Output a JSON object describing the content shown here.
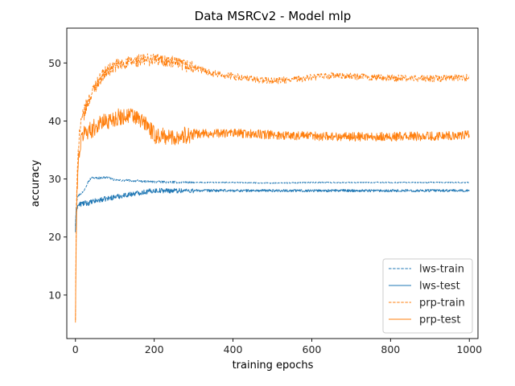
{
  "chart_data": {
    "type": "line",
    "title": "Data MSRCv2 - Model mlp",
    "xlabel": "training epochs",
    "ylabel": "accuracy",
    "xlim": [
      -22,
      1022
    ],
    "ylim": [
      2.5,
      56
    ],
    "xticks": [
      0,
      200,
      400,
      600,
      800,
      1000
    ],
    "yticks": [
      10,
      20,
      30,
      40,
      50
    ],
    "grid": false,
    "legend_position": "bottom-right",
    "series": [
      {
        "name": "lws-train",
        "color": "#1f77b4",
        "style": "dashed",
        "x": [
          0,
          2,
          5,
          10,
          20,
          30,
          40,
          60,
          80,
          100,
          150,
          200,
          300,
          400,
          500,
          600,
          700,
          800,
          900,
          1000
        ],
        "y": [
          22,
          25.5,
          27,
          27.3,
          27.8,
          29.3,
          30.2,
          30.2,
          30.3,
          29.8,
          29.7,
          29.5,
          29.4,
          29.4,
          29.3,
          29.4,
          29.4,
          29.4,
          29.4,
          29.4
        ],
        "noise": 0.15
      },
      {
        "name": "lws-test",
        "color": "#1f77b4",
        "style": "solid",
        "x": [
          0,
          2,
          5,
          10,
          20,
          30,
          50,
          100,
          150,
          200,
          300,
          400,
          500,
          600,
          700,
          800,
          900,
          1000
        ],
        "y": [
          21,
          24.5,
          25.3,
          25.6,
          25.8,
          25.8,
          26.2,
          26.9,
          27.5,
          28.0,
          28.0,
          28.0,
          28.0,
          28.0,
          28.0,
          28.0,
          28.0,
          28.0
        ],
        "noise": 0.35
      },
      {
        "name": "prp-train",
        "color": "#ff7f0e",
        "style": "dashed",
        "x": [
          0,
          2,
          5,
          10,
          20,
          30,
          50,
          70,
          100,
          150,
          200,
          250,
          300,
          350,
          400,
          450,
          500,
          550,
          600,
          650,
          700,
          800,
          900,
          1000
        ],
        "y": [
          6,
          22,
          33,
          38,
          41,
          43,
          46,
          48,
          49.5,
          50.3,
          50.7,
          50.0,
          49.2,
          48.2,
          47.7,
          47.2,
          46.9,
          47.1,
          47.5,
          47.8,
          47.7,
          47.4,
          47.3,
          47.5
        ],
        "noise": 0.9
      },
      {
        "name": "prp-test",
        "color": "#ff7f0e",
        "style": "solid",
        "x": [
          0,
          2,
          5,
          10,
          20,
          40,
          60,
          100,
          140,
          180,
          200,
          250,
          300,
          400,
          500,
          600,
          700,
          800,
          900,
          1000
        ],
        "y": [
          5.5,
          20,
          30,
          35,
          38,
          38.5,
          39.5,
          40.5,
          41,
          39.5,
          37.5,
          37.2,
          37.8,
          37.9,
          37.6,
          37.4,
          37.3,
          37.3,
          37.4,
          37.6
        ],
        "noise": 1.2
      }
    ]
  }
}
